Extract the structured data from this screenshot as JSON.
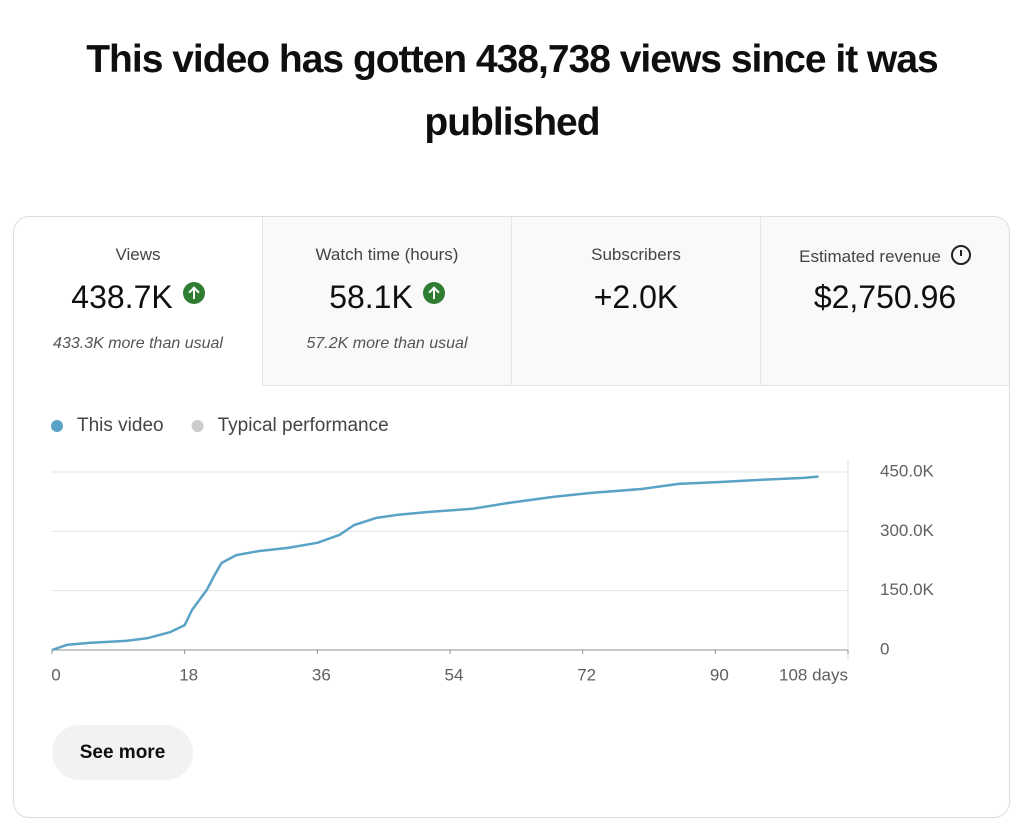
{
  "header": {
    "title": "This video has gotten 438,738 views since it was published"
  },
  "metrics": [
    {
      "label": "Views",
      "value": "438.7K",
      "trend": "up",
      "note": "433.3K more than usual"
    },
    {
      "label": "Watch time (hours)",
      "value": "58.1K",
      "trend": "up",
      "note": "57.2K more than usual"
    },
    {
      "label": "Subscribers",
      "value": "+2.0K"
    },
    {
      "label": "Estimated revenue",
      "value": "$2,750.96"
    }
  ],
  "chart_data": {
    "type": "line",
    "x": [
      0,
      2,
      5,
      10,
      13,
      16,
      18,
      19,
      21,
      22,
      23,
      25,
      28,
      32,
      36,
      39,
      41,
      44,
      47,
      51,
      57,
      62,
      68,
      73,
      80,
      85,
      91,
      96,
      102,
      104
    ],
    "series": [
      {
        "name": "This video",
        "color": "#5aa2c6",
        "values": [
          0,
          13000,
          18000,
          23000,
          30000,
          45000,
          63000,
          101000,
          152000,
          187000,
          220000,
          240000,
          250000,
          258000,
          271000,
          291000,
          316000,
          334000,
          342000,
          349000,
          357000,
          372000,
          387000,
          397000,
          407000,
          420000,
          425000,
          430000,
          435000,
          438738
        ]
      },
      {
        "name": "Typical performance",
        "color": "#cccccc",
        "values": [
          null,
          null,
          null,
          null,
          null,
          null,
          null,
          null,
          null,
          null,
          null,
          null,
          null,
          null,
          null,
          null,
          null,
          null,
          null,
          null,
          null,
          null,
          null,
          null,
          null,
          null,
          null,
          null,
          null,
          null
        ]
      }
    ],
    "xlim": [
      0,
      108
    ],
    "xticks": [
      0,
      18,
      36,
      54,
      72,
      90,
      {
        "value": 108,
        "label": "108 days"
      }
    ],
    "ylim": [
      0,
      450000
    ],
    "yticks": [
      0,
      {
        "value": 150000,
        "label": "150.0K"
      },
      {
        "value": 300000,
        "label": "300.0K"
      },
      {
        "value": 450000,
        "label": "450.0K"
      }
    ],
    "grid": true
  },
  "button": {
    "label": "See more"
  }
}
